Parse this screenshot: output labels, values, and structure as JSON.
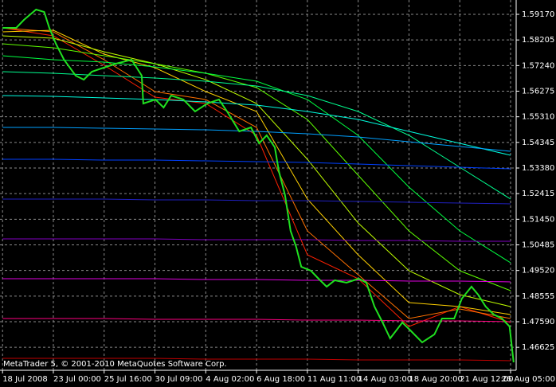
{
  "chart_data": {
    "type": "line",
    "note_text": "MetaTrader 5, © 2001-2010 MetaQuotes Software Corp.",
    "grid": true,
    "background": "#000000",
    "ylim": [
      1.4576,
      1.5971
    ],
    "xlim": [
      -0.05,
      10.11
    ],
    "yticks": [
      {
        "value": 1.5917,
        "label": "1.59170"
      },
      {
        "value": 1.58205,
        "label": "1.58205"
      },
      {
        "value": 1.5724,
        "label": "1.57240"
      },
      {
        "value": 1.56275,
        "label": "1.56275"
      },
      {
        "value": 1.5531,
        "label": "1.55310"
      },
      {
        "value": 1.54345,
        "label": "1.54345"
      },
      {
        "value": 1.5338,
        "label": "1.53380"
      },
      {
        "value": 1.52415,
        "label": "1.52415"
      },
      {
        "value": 1.5145,
        "label": "1.51450"
      },
      {
        "value": 1.50485,
        "label": "1.50485"
      },
      {
        "value": 1.4952,
        "label": "1.49520"
      },
      {
        "value": 1.48555,
        "label": "1.48555"
      },
      {
        "value": 1.4759,
        "label": "1.47590"
      },
      {
        "value": 1.46625,
        "label": "1.46625"
      }
    ],
    "xticks": [
      {
        "value": 0,
        "label": "18 Jul 2008"
      },
      {
        "value": 1,
        "label": "23 Jul 00:00"
      },
      {
        "value": 2,
        "label": "25 Jul 16:00"
      },
      {
        "value": 3,
        "label": "30 Jul 09:00"
      },
      {
        "value": 4,
        "label": "4 Aug 02:00"
      },
      {
        "value": 5,
        "label": "6 Aug 18:00"
      },
      {
        "value": 6,
        "label": "11 Aug 11:00"
      },
      {
        "value": 7,
        "label": "14 Aug 03:00"
      },
      {
        "value": 8,
        "label": "18 Aug 20:00"
      },
      {
        "value": 9,
        "label": "21 Aug 12:00"
      },
      {
        "value": 10,
        "label": "26 Aug 05:00"
      }
    ],
    "x": [
      0,
      1,
      2,
      3,
      4,
      5,
      6,
      7,
      8,
      9,
      10
    ],
    "series": [
      {
        "color": "#ff2000",
        "values": [
          1.5866,
          1.5836,
          1.5725,
          1.5605,
          1.5581,
          1.5461,
          1.5011,
          1.4921,
          1.4741,
          1.4816,
          1.4756
        ]
      },
      {
        "color": "#ff7000",
        "values": [
          1.5866,
          1.5851,
          1.5746,
          1.5626,
          1.5596,
          1.5491,
          1.5101,
          1.4936,
          1.4771,
          1.4807,
          1.4771
        ]
      },
      {
        "color": "#ffd000",
        "values": [
          1.5851,
          1.5857,
          1.5767,
          1.5716,
          1.5626,
          1.5551,
          1.5221,
          1.5011,
          1.4831,
          1.4816,
          1.4786
        ]
      },
      {
        "color": "#c0ff00",
        "values": [
          1.5836,
          1.5827,
          1.5776,
          1.5731,
          1.5671,
          1.5581,
          1.5371,
          1.5131,
          1.4951,
          1.4861,
          1.4816
        ]
      },
      {
        "color": "#60ff00",
        "values": [
          1.5806,
          1.5791,
          1.5761,
          1.5731,
          1.5695,
          1.5641,
          1.5521,
          1.5311,
          1.5101,
          1.4951,
          1.4876
        ]
      },
      {
        "color": "#00ff40",
        "values": [
          1.5761,
          1.5746,
          1.5737,
          1.5719,
          1.5695,
          1.5665,
          1.5596,
          1.5461,
          1.5266,
          1.5101,
          1.4981
        ]
      },
      {
        "color": "#00ff90",
        "values": [
          1.5701,
          1.5695,
          1.5686,
          1.5677,
          1.5665,
          1.5647,
          1.5611,
          1.5551,
          1.5461,
          1.5341,
          1.5221
        ]
      },
      {
        "color": "#00ffe0",
        "values": [
          1.5611,
          1.5608,
          1.5602,
          1.5596,
          1.5587,
          1.5575,
          1.5551,
          1.5521,
          1.5476,
          1.5431,
          1.5386
        ]
      },
      {
        "color": "#00a0ff",
        "values": [
          1.5491,
          1.5491,
          1.5488,
          1.5485,
          1.5482,
          1.5476,
          1.5467,
          1.5455,
          1.5437,
          1.5419,
          1.5401
        ]
      },
      {
        "color": "#0040ff",
        "values": [
          1.5371,
          1.5371,
          1.5368,
          1.5368,
          1.5365,
          1.5362,
          1.5359,
          1.5353,
          1.5347,
          1.5341,
          1.5335
        ]
      },
      {
        "color": "#2020c0",
        "values": [
          1.5221,
          1.5221,
          1.5221,
          1.5218,
          1.5218,
          1.5215,
          1.5215,
          1.5212,
          1.5209,
          1.5206,
          1.5203
        ]
      },
      {
        "color": "#8000c0",
        "values": [
          1.5071,
          1.5071,
          1.5071,
          1.5071,
          1.5068,
          1.5068,
          1.5068,
          1.5065,
          1.5065,
          1.5062,
          1.5062
        ]
      },
      {
        "color": "#e000e0",
        "values": [
          1.4921,
          1.4921,
          1.4921,
          1.4921,
          1.4918,
          1.4918,
          1.4915,
          1.4915,
          1.4912,
          1.4912,
          1.4909
        ]
      },
      {
        "color": "#ff0080",
        "values": [
          1.4771,
          1.4771,
          1.4771,
          1.4768,
          1.4768,
          1.4768,
          1.4765,
          1.4765,
          1.4762,
          1.4762,
          1.4759
        ]
      },
      {
        "color": "#c00000",
        "values": [
          1.4621,
          1.4621,
          1.4621,
          1.4621,
          1.4618,
          1.4618,
          1.4618,
          1.4615,
          1.4615,
          1.4615,
          1.4612
        ]
      }
    ],
    "price": {
      "color": "#20e020",
      "x": [
        0,
        0.27,
        0.42,
        0.66,
        0.82,
        0.92,
        1.05,
        1.21,
        1.44,
        1.6,
        1.76,
        1.99,
        2.23,
        2.54,
        2.74,
        2.77,
        3.01,
        3.17,
        3.32,
        3.56,
        3.79,
        4.03,
        4.26,
        4.42,
        4.66,
        4.89,
        5.05,
        5.2,
        5.36,
        5.44,
        5.56,
        5.67,
        5.78,
        5.88,
        6.07,
        6.22,
        6.38,
        6.54,
        6.77,
        7.01,
        7.16,
        7.32,
        7.48,
        7.63,
        7.87,
        8.03,
        8.26,
        8.5,
        8.65,
        8.89,
        9.04,
        9.23,
        9.36,
        9.51,
        9.67,
        9.83,
        9.98,
        10.06
      ],
      "values": [
        1.5866,
        1.5866,
        1.5896,
        1.5935,
        1.5926,
        1.5866,
        1.5806,
        1.5746,
        1.5686,
        1.5671,
        1.5701,
        1.5716,
        1.5731,
        1.5746,
        1.5686,
        1.5581,
        1.5596,
        1.5566,
        1.5611,
        1.5596,
        1.5551,
        1.5581,
        1.5596,
        1.5551,
        1.5476,
        1.5491,
        1.5431,
        1.5461,
        1.5416,
        1.5326,
        1.5236,
        1.5101,
        1.5041,
        1.4966,
        1.4951,
        1.4921,
        1.4891,
        1.4915,
        1.4906,
        1.4921,
        1.4906,
        1.4816,
        1.4756,
        1.4696,
        1.4756,
        1.4726,
        1.4681,
        1.4711,
        1.4771,
        1.4771,
        1.4846,
        1.4891,
        1.4861,
        1.4816,
        1.4786,
        1.4771,
        1.4741,
        1.4606
      ]
    }
  }
}
